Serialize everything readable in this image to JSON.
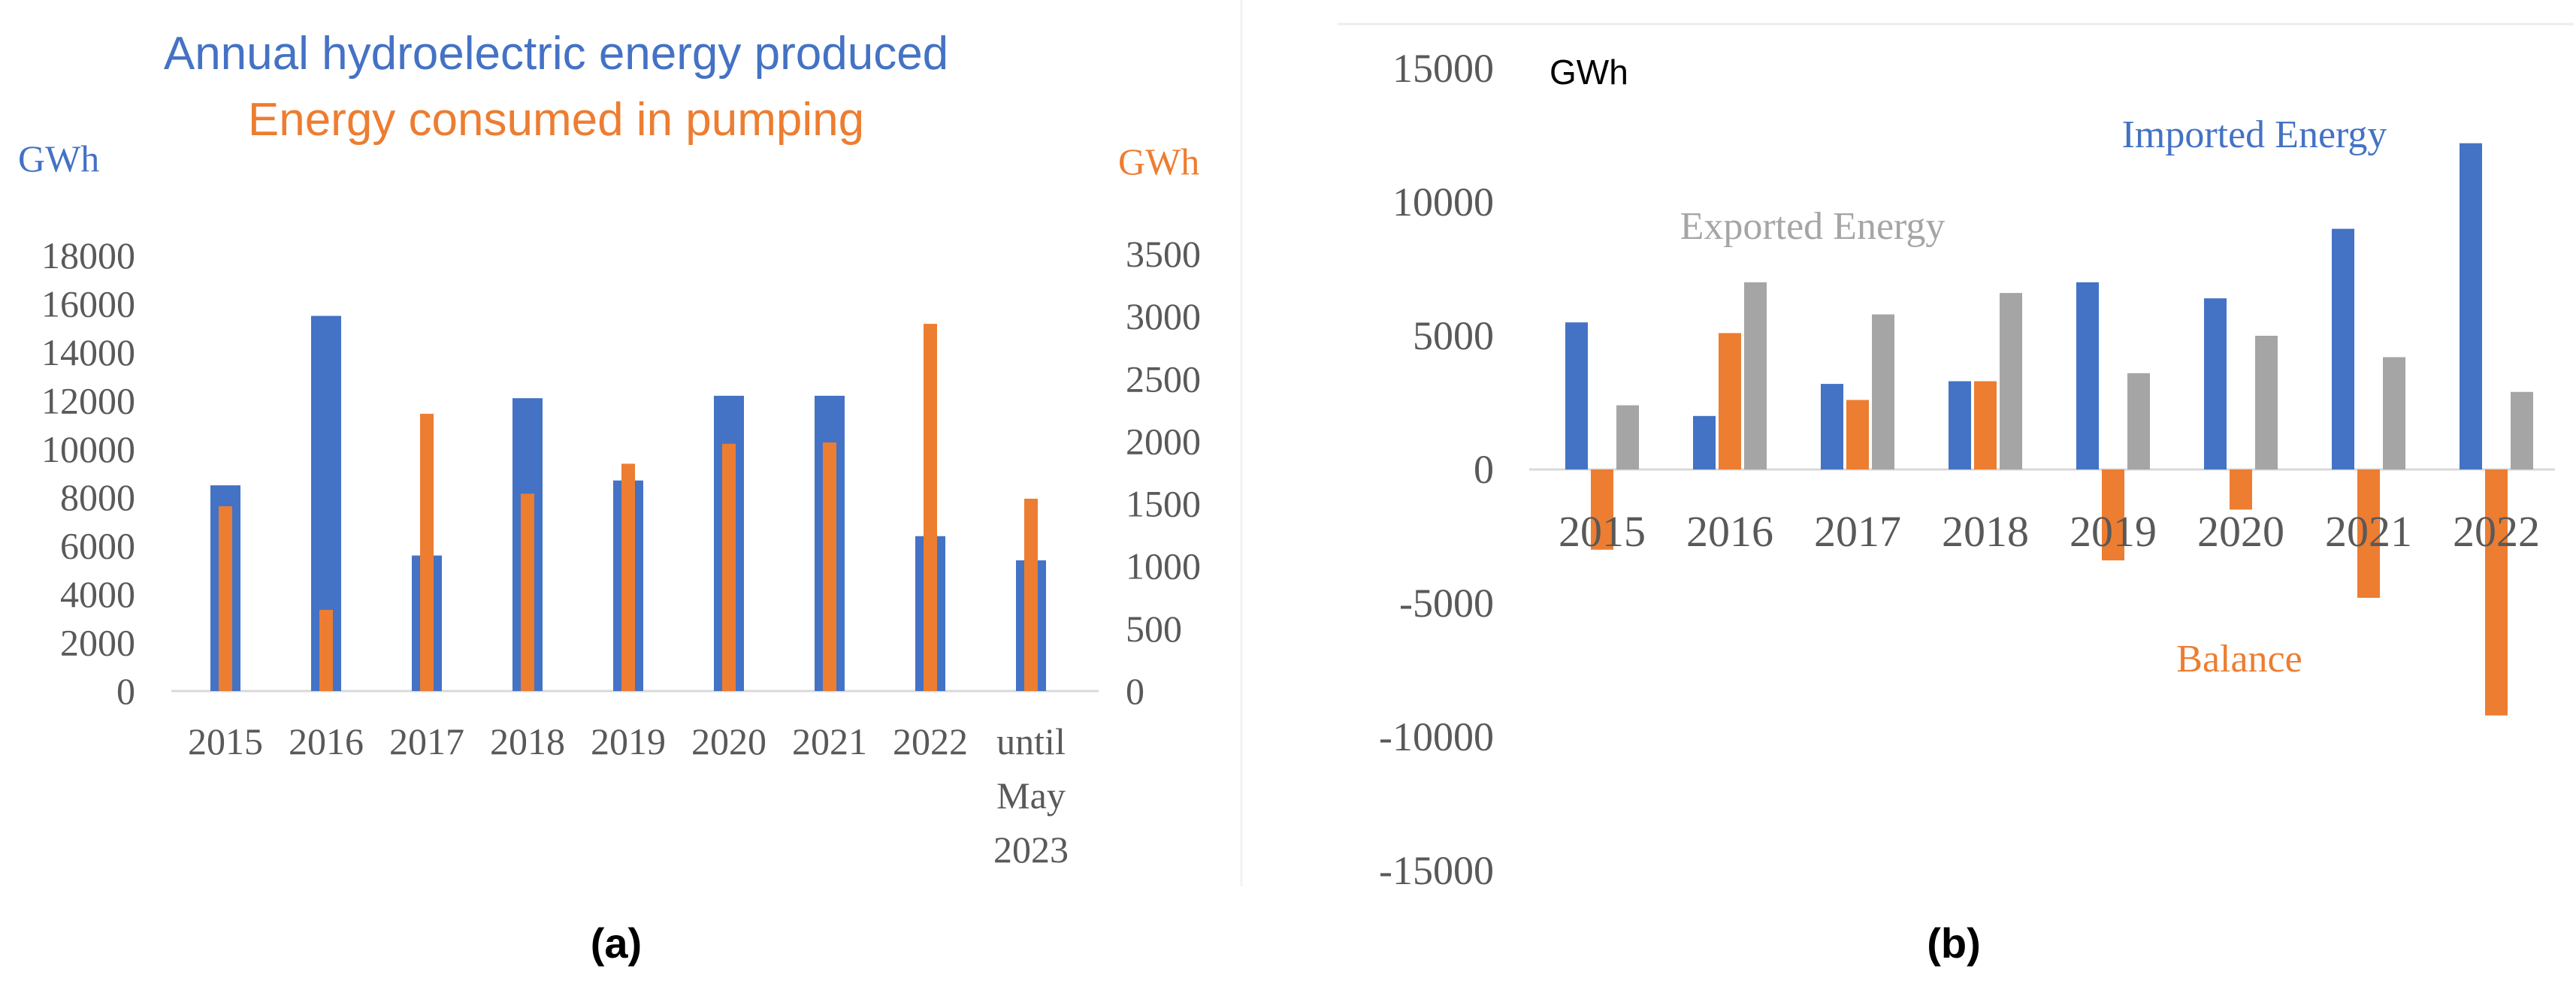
{
  "colors": {
    "blue": "#4472C4",
    "orange": "#ED7D31",
    "gray": "#A5A5A5",
    "axis_text": "#595959",
    "panel_border": "#EDEDED"
  },
  "panel_labels": {
    "a": "(a)",
    "b": "(b)"
  },
  "chart_data": [
    {
      "id": "a",
      "type": "bar",
      "title_lines": [
        "Annual hydroelectric energy produced",
        "Energy consumed in pumping"
      ],
      "categories": [
        [
          "2015"
        ],
        [
          "2016"
        ],
        [
          "2017"
        ],
        [
          "2018"
        ],
        [
          "2019"
        ],
        [
          "2020"
        ],
        [
          "2021"
        ],
        [
          "2022"
        ],
        [
          "until",
          "May",
          "2023"
        ]
      ],
      "left_axis": {
        "label": "GWh",
        "ticks": [
          0,
          2000,
          4000,
          6000,
          8000,
          10000,
          12000,
          14000,
          16000,
          18000
        ],
        "ylim": [
          0,
          18000
        ]
      },
      "right_axis": {
        "label": "GWh",
        "ticks": [
          0,
          500,
          1000,
          1500,
          2000,
          2500,
          3000,
          3500
        ],
        "ylim": [
          0,
          3500
        ]
      },
      "series": [
        {
          "name": "Annual hydroelectric energy produced",
          "axis": "left",
          "color": "#4472C4",
          "values": [
            8500,
            15500,
            5600,
            12100,
            8700,
            12200,
            12200,
            6400,
            5400
          ]
        },
        {
          "name": "Energy consumed in pumping",
          "axis": "right",
          "color": "#ED7D31",
          "values": [
            1480,
            650,
            2220,
            1580,
            1820,
            1980,
            1990,
            2940,
            1540
          ]
        }
      ]
    },
    {
      "id": "b",
      "type": "bar",
      "ylabel": "GWh",
      "categories": [
        "2015",
        "2016",
        "2017",
        "2018",
        "2019",
        "2020",
        "2021",
        "2022"
      ],
      "y_ticks": [
        15000,
        10000,
        5000,
        0,
        -5000,
        -10000,
        -15000
      ],
      "ylim": [
        -15000,
        15000
      ],
      "series_labels": {
        "imported": "Imported Energy",
        "exported": "Exported Energy",
        "balance": "Balance"
      },
      "series": [
        {
          "name": "Imported Energy",
          "color": "#4472C4",
          "values": [
            5500,
            2000,
            3200,
            3300,
            7000,
            6400,
            9000,
            12200
          ]
        },
        {
          "name": "Balance",
          "color": "#ED7D31",
          "values": [
            -3000,
            5100,
            2600,
            3300,
            -3400,
            -1500,
            -4800,
            -9200
          ]
        },
        {
          "name": "Exported Energy",
          "color": "#A5A5A5",
          "values": [
            2400,
            7000,
            5800,
            6600,
            3600,
            5000,
            4200,
            2900
          ]
        }
      ]
    }
  ]
}
